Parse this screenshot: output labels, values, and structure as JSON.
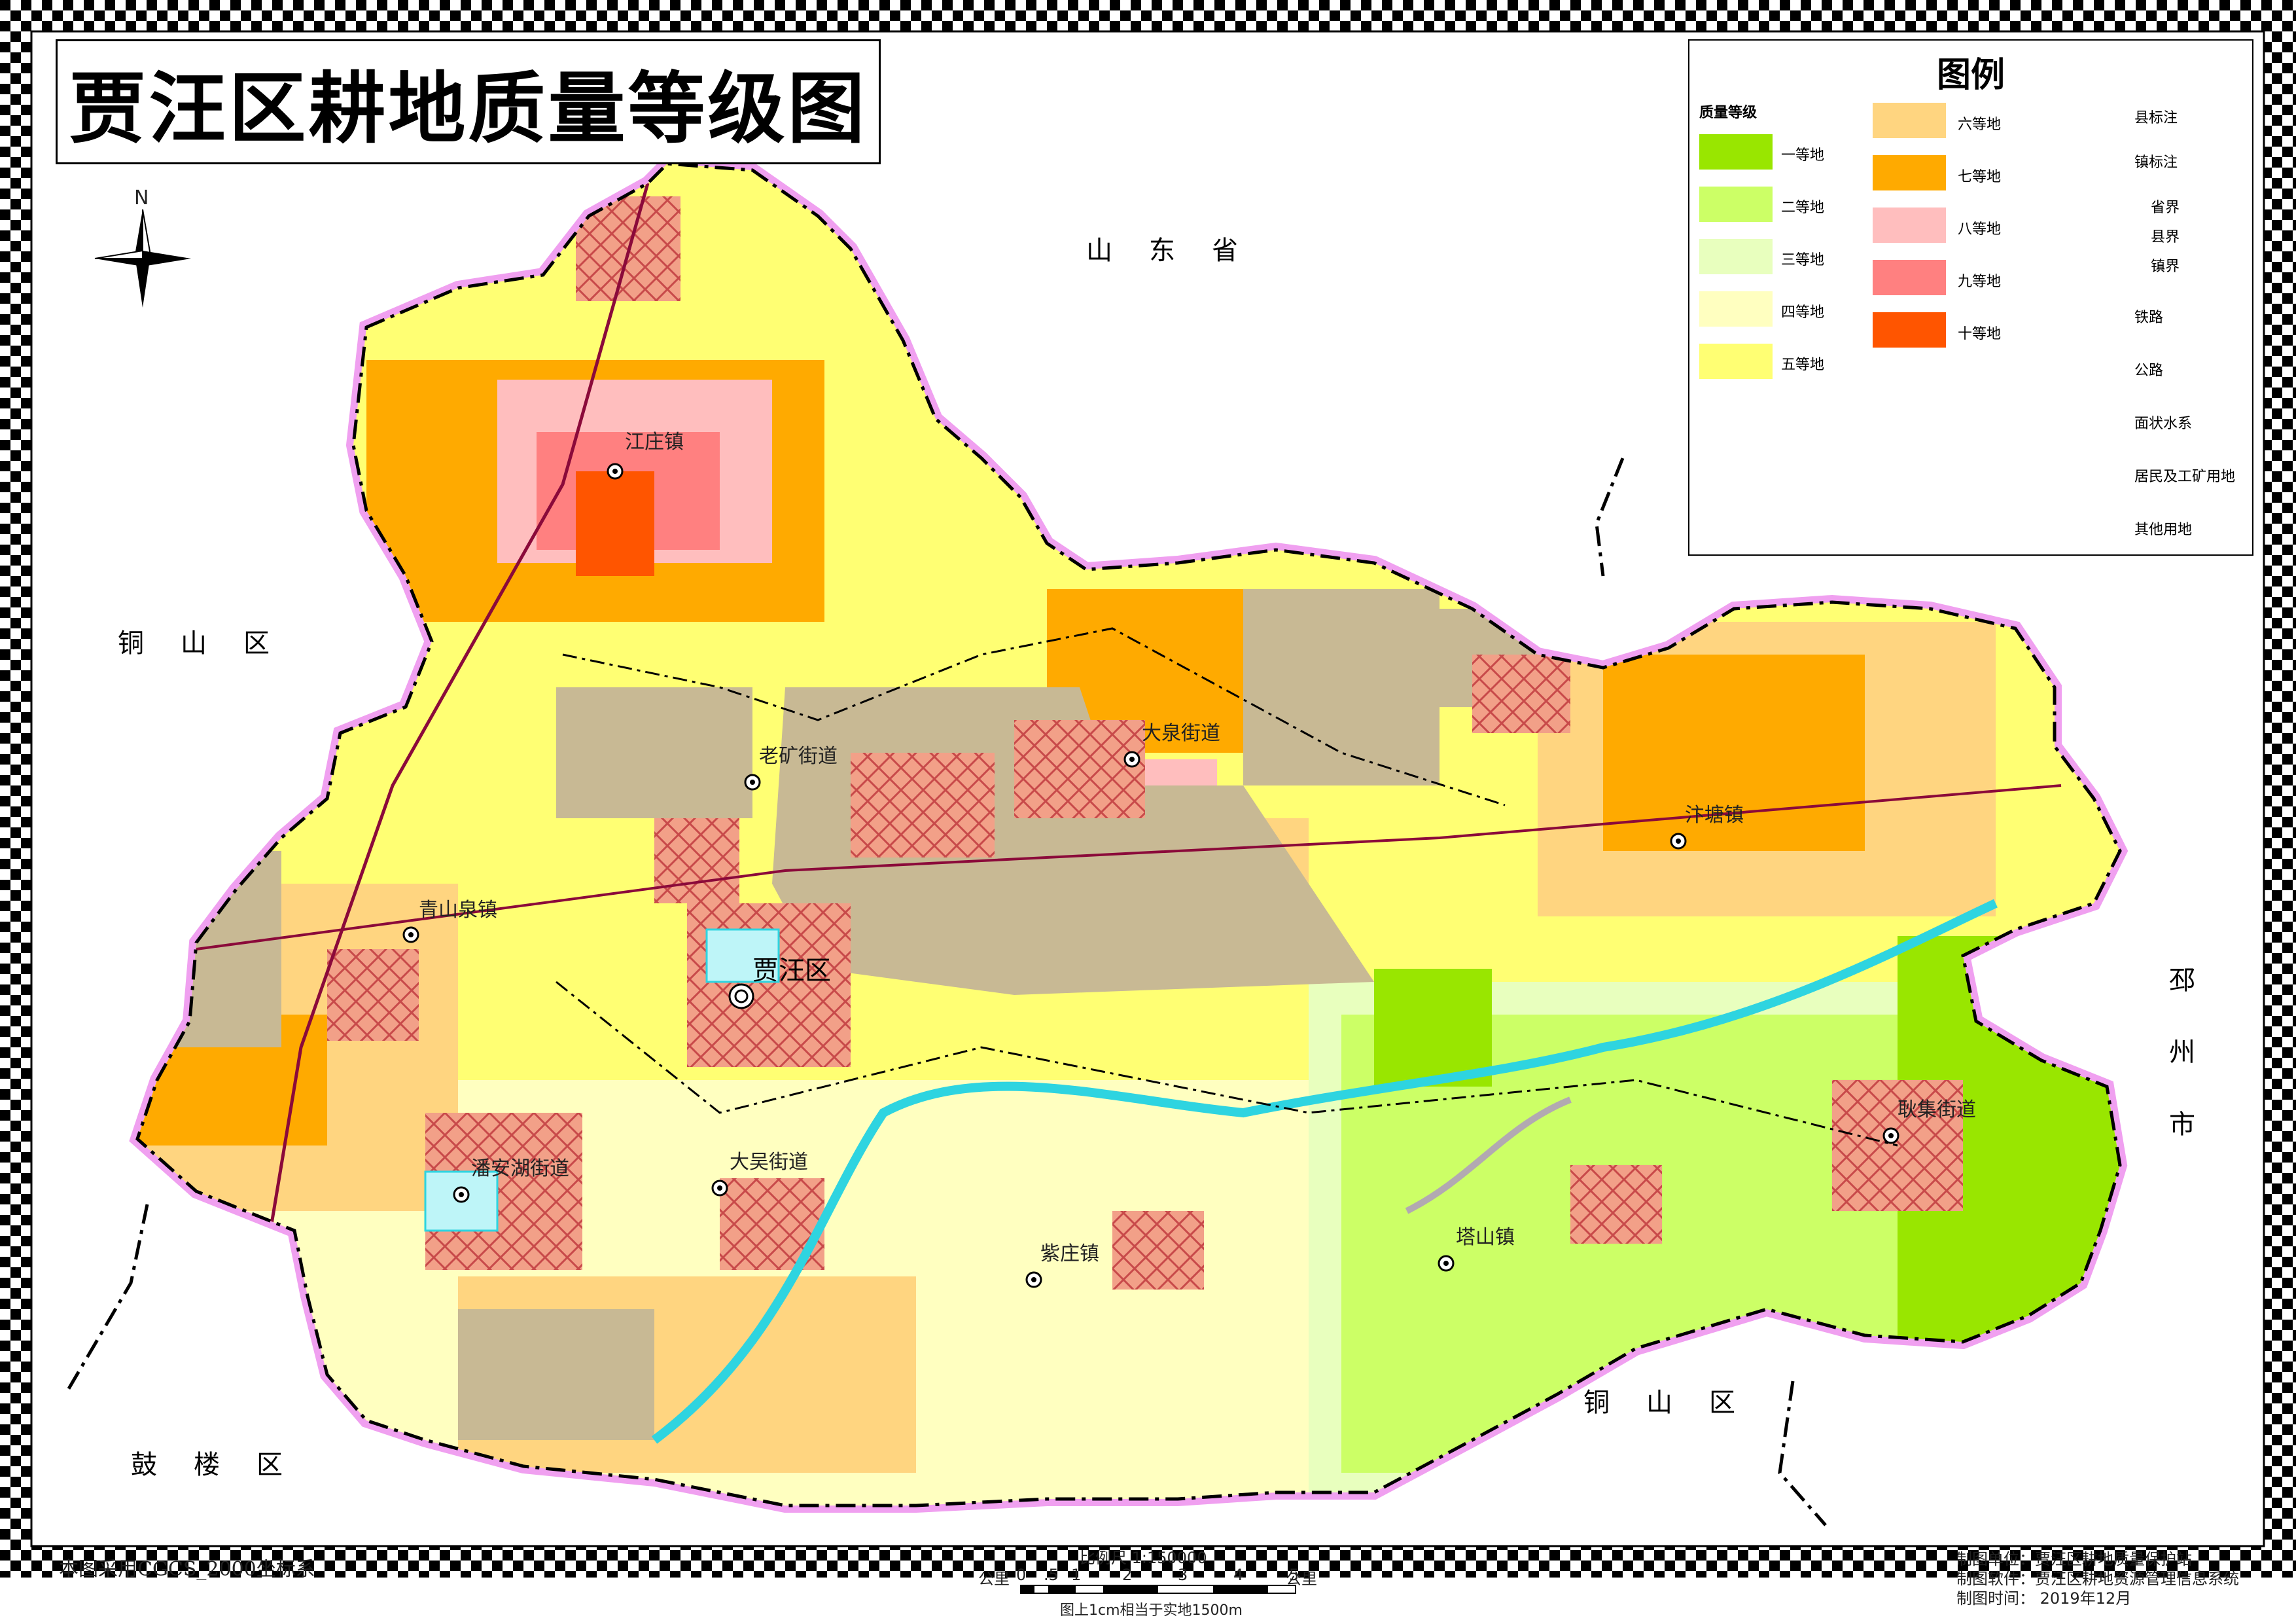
{
  "title": "贾汪区耕地质量等级图",
  "legend": {
    "title": "图例",
    "grade_header": "质量等级",
    "grades": [
      {
        "label": "一等地",
        "color": "#99e600"
      },
      {
        "label": "二等地",
        "color": "#ccff66"
      },
      {
        "label": "三等地",
        "color": "#e8ffbe"
      },
      {
        "label": "四等地",
        "color": "#ffffc0"
      },
      {
        "label": "五等地",
        "color": "#ffff73"
      },
      {
        "label": "六等地",
        "color": "#ffd580"
      },
      {
        "label": "七等地",
        "color": "#ffaa00"
      },
      {
        "label": "八等地",
        "color": "#ffbebe"
      },
      {
        "label": "九等地",
        "color": "#ff8080"
      },
      {
        "label": "十等地",
        "color": "#ff5500"
      }
    ],
    "symbols": {
      "county": "县标注",
      "town": "镇标注",
      "province_border": "省界",
      "county_border": "县界",
      "town_border": "镇界",
      "railway": "铁路",
      "road": "公路",
      "water": "面状水系",
      "residential": "居民及工矿用地",
      "other": "其他用地"
    },
    "colors": {
      "railway": "#b2a9b1",
      "road": "#8b0a3a",
      "water": "#bef5f8",
      "water_edge": "#2ed4e0",
      "residential_fill": "#f2a088",
      "residential_hatch": "#c84a4a",
      "other": "#c8b994"
    }
  },
  "neighbors": {
    "north": "山东省",
    "west": "铜山区",
    "south": "铜山区",
    "southwest": "鼓楼区",
    "east": "邳州市"
  },
  "towns": [
    "江庄镇",
    "老矿街道",
    "大泉街道",
    "汴塘镇",
    "青山泉镇",
    "潘安湖街道",
    "大吴街道",
    "紫庄镇",
    "塔山镇",
    "耿集街道"
  ],
  "county_seat": "贾汪区",
  "north_arrow": "N",
  "footer": {
    "crs": "本图采用CGCS_2000坐标系",
    "scale": "比例尺  1:150000",
    "scale_unit_left": "公里",
    "scale_unit_right": "公里",
    "scale_ticks": [
      "0",
      ".5",
      "1",
      "2",
      "3",
      "4",
      "5"
    ],
    "scale_note": "图上1cm相当于实地1500m",
    "maker": "制图单位：贾汪区耕地质量保护站",
    "software": "制图软件：贾汪区耕地资源管理信息系统",
    "date": "制图时间：  2019年12月"
  }
}
